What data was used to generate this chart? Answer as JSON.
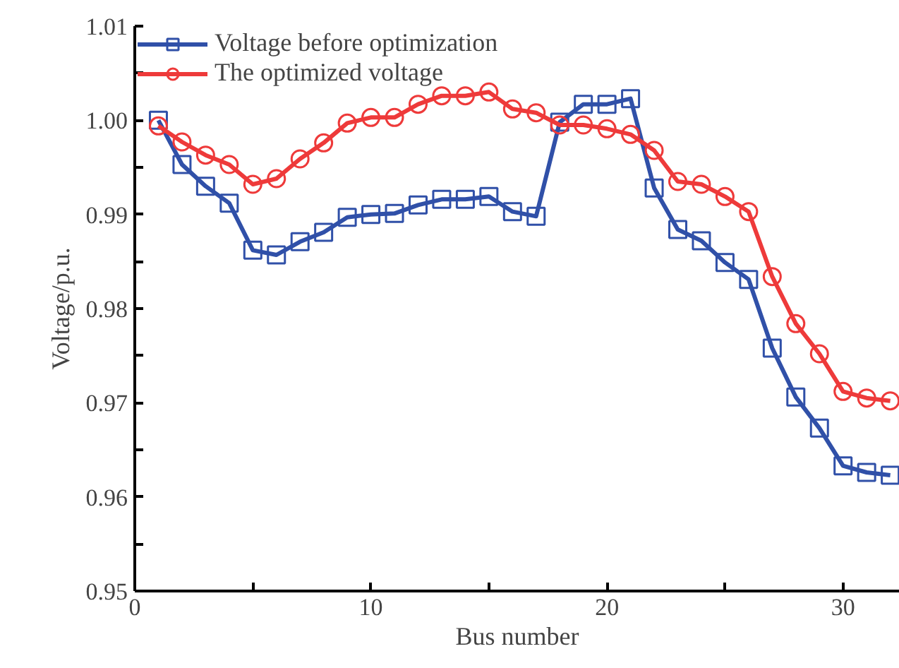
{
  "chart_data": {
    "type": "line",
    "xlabel": "Bus number",
    "ylabel": "Voltage/p.u.",
    "x": [
      1,
      2,
      3,
      4,
      5,
      6,
      7,
      8,
      9,
      10,
      11,
      12,
      13,
      14,
      15,
      16,
      17,
      18,
      19,
      20,
      21,
      22,
      23,
      24,
      25,
      26,
      27,
      28,
      29,
      30,
      31,
      32
    ],
    "series": [
      {
        "name": "Voltage before optimization",
        "color": "#3050a8",
        "marker": "square",
        "values": [
          1.0,
          0.9953,
          0.993,
          0.9912,
          0.9862,
          0.9857,
          0.9871,
          0.9881,
          0.9897,
          0.99,
          0.9901,
          0.991,
          0.9916,
          0.9916,
          0.9919,
          0.9903,
          0.9898,
          0.9998,
          1.0017,
          1.0017,
          1.0023,
          0.9928,
          0.9884,
          0.9872,
          0.9849,
          0.9831,
          0.9758,
          0.9706,
          0.9673,
          0.9633,
          0.9626,
          0.9623
        ]
      },
      {
        "name": "The optimized voltage",
        "color": "#ee3a3a",
        "marker": "circle",
        "values": [
          0.9994,
          0.9977,
          0.9963,
          0.9953,
          0.9932,
          0.9938,
          0.9959,
          0.9976,
          0.9997,
          1.0003,
          1.0003,
          1.0017,
          1.0026,
          1.0026,
          1.003,
          1.0012,
          1.0008,
          0.9995,
          0.9995,
          0.9991,
          0.9985,
          0.9968,
          0.9935,
          0.9932,
          0.9919,
          0.9903,
          0.9834,
          0.9784,
          0.9752,
          0.9712,
          0.9705,
          0.9702
        ]
      }
    ],
    "xlim": [
      0,
      32.4
    ],
    "ylim": [
      0.95,
      1.01
    ],
    "xticks": [
      0,
      {
        "value": 5,
        "label": null
      },
      10,
      {
        "value": 15,
        "label": null
      },
      20,
      {
        "value": 25,
        "label": null
      },
      30
    ],
    "yticks": [
      {
        "value": 0.95,
        "label": "0.95"
      },
      {
        "value": 0.955,
        "label": null
      },
      {
        "value": 0.96,
        "label": "0.96"
      },
      {
        "value": 0.965,
        "label": null
      },
      {
        "value": 0.97,
        "label": "0.97"
      },
      {
        "value": 0.975,
        "label": null
      },
      {
        "value": 0.98,
        "label": "0.98"
      },
      {
        "value": 0.985,
        "label": null
      },
      {
        "value": 0.99,
        "label": "0.99"
      },
      {
        "value": 0.995,
        "label": null
      },
      {
        "value": 1.0,
        "label": "1.00"
      },
      {
        "value": 1.005,
        "label": null
      },
      {
        "value": 1.01,
        "label": "1.01"
      }
    ],
    "grid": false,
    "legend": "top left",
    "line_style": "solid"
  }
}
